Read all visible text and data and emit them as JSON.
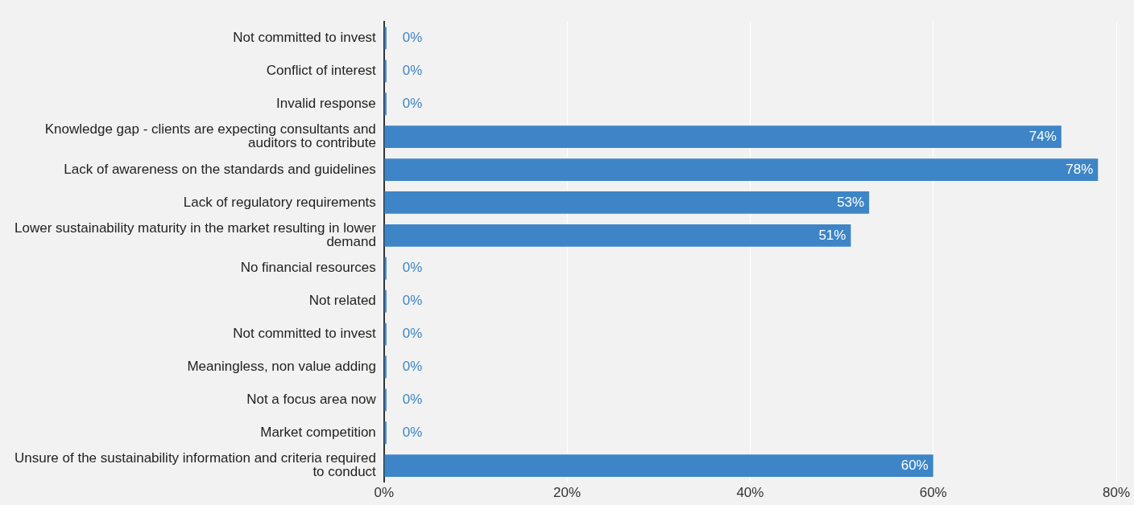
{
  "chart_data": {
    "type": "bar",
    "orientation": "horizontal",
    "categories": [
      "Not committed to invest",
      "Conflict of interest",
      "Invalid response",
      "Knowledge gap - clients are expecting consultants and auditors to contribute",
      "Lack of awareness on the standards and guidelines",
      "Lack of regulatory requirements",
      "Lower sustainability maturity in the market resulting in lower demand",
      "No financial resources",
      "Not related",
      "Not committed to invest",
      "Meaningless, non value adding",
      "Not a focus area now",
      "Market competition",
      "Unsure of the sustainability information and criteria required to conduct"
    ],
    "values": [
      0,
      0,
      0,
      74,
      78,
      53,
      51,
      0,
      0,
      0,
      0,
      0,
      0,
      60
    ],
    "color": "#3d85c6",
    "xlim": [
      0,
      80
    ],
    "xticks": [
      {
        "value": 0,
        "label": "0%"
      },
      {
        "value": 20,
        "label": "20%"
      },
      {
        "value": 40,
        "label": "40%"
      },
      {
        "value": 60,
        "label": "60%"
      },
      {
        "value": 80,
        "label": "80%"
      }
    ],
    "value_labels": [
      "0%",
      "0%",
      "0%",
      "74%",
      "78%",
      "53%",
      "51%",
      "0%",
      "0%",
      "0%",
      "0%",
      "0%",
      "0%",
      "60%"
    ],
    "grid": "x"
  }
}
